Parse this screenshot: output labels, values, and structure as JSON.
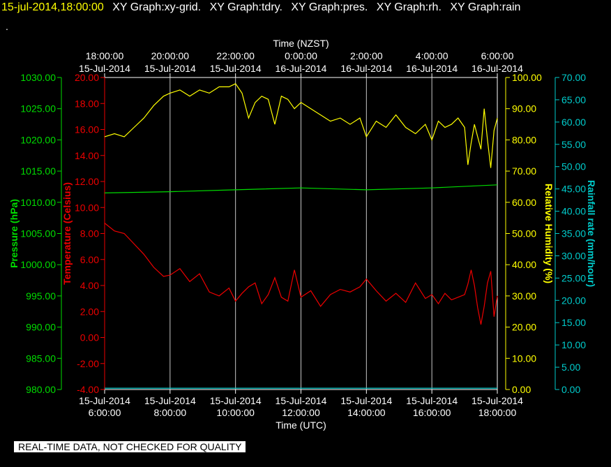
{
  "header": {
    "timestamp": "15-jul-2014,18:00:00",
    "titles": [
      "XY Graph:xy-grid.",
      "XY Graph:tdry.",
      "XY Graph:pres.",
      "XY Graph:rh.",
      "XY Graph:rain"
    ],
    "dot": "."
  },
  "footer": {
    "notice": "REAL-TIME DATA, NOT CHECKED FOR QUALITY"
  },
  "colors": {
    "pressure": "#00dd00",
    "temperature": "#ee0000",
    "humidity": "#ffff00",
    "rain": "#00cccc",
    "grid": "#c8c8c8",
    "axis": "#ffffff"
  },
  "chart_data": {
    "type": "line",
    "top_axis_label": "Time (NZST)",
    "bottom_axis_label": "Time (UTC)",
    "top_ticks": [
      {
        "time": "18:00:00",
        "date": "15-Jul-2014"
      },
      {
        "time": "20:00:00",
        "date": "15-Jul-2014"
      },
      {
        "time": "22:00:00",
        "date": "15-Jul-2014"
      },
      {
        "time": "0:00:00",
        "date": "16-Jul-2014"
      },
      {
        "time": "2:00:00",
        "date": "16-Jul-2014"
      },
      {
        "time": "4:00:00",
        "date": "16-Jul-2014"
      },
      {
        "time": "6:00:00",
        "date": "16-Jul-2014"
      }
    ],
    "bottom_ticks": [
      {
        "date": "15-Jul-2014",
        "time": "6:00:00"
      },
      {
        "date": "15-Jul-2014",
        "time": "8:00:00"
      },
      {
        "date": "15-Jul-2014",
        "time": "10:00:00"
      },
      {
        "date": "15-Jul-2014",
        "time": "12:00:00"
      },
      {
        "date": "15-Jul-2014",
        "time": "14:00:00"
      },
      {
        "date": "15-Jul-2014",
        "time": "16:00:00"
      },
      {
        "date": "15-Jul-2014",
        "time": "18:00:00"
      }
    ],
    "x_range_hours_utc": [
      6,
      18
    ],
    "grid": true,
    "axes": {
      "pressure": {
        "label": "Pressure (hPa)",
        "range": [
          980,
          1030
        ],
        "ticks": [
          "1030.00",
          "1025.00",
          "1020.00",
          "1015.00",
          "1010.00",
          "1005.00",
          "1000.00",
          "995.00",
          "990.00",
          "985.00",
          "980.00"
        ]
      },
      "temperature": {
        "label": "Temperature (Celsius)",
        "range": [
          -4,
          20
        ],
        "ticks": [
          "20.00",
          "18.00",
          "16.00",
          "14.00",
          "12.00",
          "10.00",
          "8.00",
          "6.00",
          "4.00",
          "2.00",
          "0.00",
          "-2.00",
          "-4.00"
        ]
      },
      "humidity": {
        "label": "Relative Humidity (%)",
        "range": [
          0,
          100
        ],
        "ticks": [
          "100.00",
          "90.00",
          "80.00",
          "70.00",
          "60.00",
          "50.00",
          "40.00",
          "30.00",
          "20.00",
          "10.00",
          "0.00"
        ]
      },
      "rain": {
        "label": "Rainfall rate (mm/hour)",
        "range": [
          0,
          70
        ],
        "ticks": [
          "70.00",
          "65.00",
          "60.00",
          "55.00",
          "50.00",
          "45.00",
          "40.00",
          "35.00",
          "30.00",
          "25.00",
          "20.00",
          "15.00",
          "10.00",
          "5.00",
          "0.00"
        ]
      }
    },
    "series": [
      {
        "name": "rh",
        "axis": "humidity",
        "x": [
          6.0,
          6.3,
          6.6,
          6.9,
          7.2,
          7.5,
          7.8,
          8.0,
          8.3,
          8.6,
          8.9,
          9.2,
          9.5,
          9.8,
          10.0,
          10.2,
          10.4,
          10.6,
          10.8,
          11.0,
          11.2,
          11.4,
          11.6,
          11.8,
          12.0,
          12.3,
          12.6,
          12.9,
          13.2,
          13.5,
          13.8,
          14.0,
          14.3,
          14.6,
          14.9,
          15.2,
          15.5,
          15.8,
          16.0,
          16.2,
          16.4,
          16.6,
          16.8,
          17.0,
          17.1,
          17.2,
          17.3,
          17.4,
          17.5,
          17.6,
          17.7,
          17.8,
          17.9,
          18.0
        ],
        "y": [
          81,
          82,
          81,
          84,
          87,
          91,
          94,
          95,
          96,
          94,
          96,
          95,
          97,
          97,
          98,
          95,
          87,
          92,
          94,
          93,
          85,
          94,
          93,
          90,
          92,
          90,
          88,
          86,
          87,
          85,
          87,
          81,
          86,
          84,
          88,
          84,
          82,
          85,
          80,
          86,
          84,
          85,
          87,
          84,
          72,
          79,
          85,
          81,
          77,
          90,
          80,
          71,
          83,
          87
        ]
      },
      {
        "name": "pressure",
        "axis": "pressure",
        "x": [
          6.0,
          8.0,
          10.0,
          12.0,
          14.0,
          16.0,
          18.0
        ],
        "y": [
          1011.5,
          1011.7,
          1012.0,
          1012.3,
          1012.0,
          1012.3,
          1012.8
        ]
      },
      {
        "name": "tdry",
        "axis": "temperature",
        "x": [
          6.0,
          6.3,
          6.6,
          6.9,
          7.2,
          7.5,
          7.8,
          8.0,
          8.3,
          8.6,
          8.9,
          9.2,
          9.5,
          9.8,
          10.0,
          10.2,
          10.4,
          10.6,
          10.8,
          11.0,
          11.2,
          11.4,
          11.6,
          11.8,
          12.0,
          12.3,
          12.6,
          12.9,
          13.2,
          13.5,
          13.8,
          14.0,
          14.3,
          14.6,
          14.9,
          15.2,
          15.5,
          15.8,
          16.0,
          16.2,
          16.4,
          16.6,
          16.8,
          17.0,
          17.1,
          17.2,
          17.3,
          17.4,
          17.5,
          17.6,
          17.7,
          17.8,
          17.9,
          18.0
        ],
        "y": [
          8.8,
          8.2,
          8.0,
          7.2,
          6.4,
          5.4,
          4.7,
          4.8,
          5.3,
          4.3,
          4.9,
          3.5,
          3.2,
          3.8,
          2.8,
          3.4,
          3.9,
          4.2,
          2.6,
          3.3,
          4.6,
          3.1,
          2.8,
          5.2,
          3.1,
          3.6,
          2.4,
          3.3,
          3.7,
          3.5,
          3.9,
          4.5,
          3.6,
          2.8,
          3.4,
          2.7,
          4.2,
          3.0,
          3.3,
          2.6,
          3.4,
          2.9,
          3.1,
          3.3,
          4.1,
          5.2,
          4.0,
          2.3,
          1.0,
          2.4,
          4.2,
          5.1,
          1.6,
          3.2
        ]
      },
      {
        "name": "rain",
        "axis": "rain",
        "x": [
          6.0,
          18.0
        ],
        "y": [
          0.3,
          0.3
        ]
      }
    ]
  }
}
